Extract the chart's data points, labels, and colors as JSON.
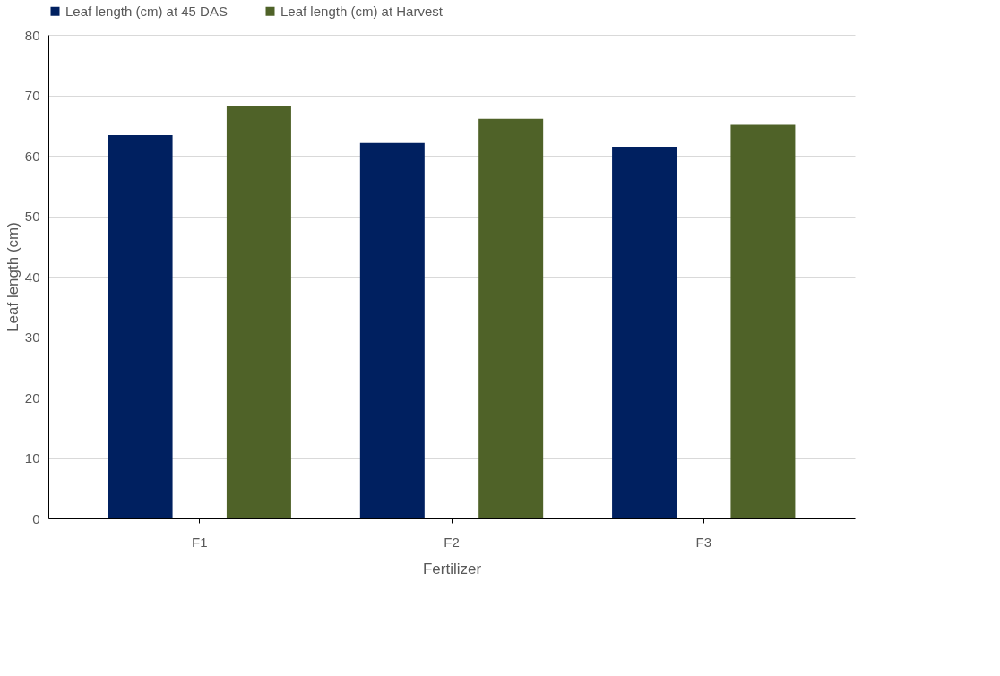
{
  "chart_data": {
    "type": "bar",
    "xlabel": "Fertilizer",
    "ylabel": "Leaf length (cm)",
    "categories": [
      "F1",
      "F2",
      "F3"
    ],
    "series": [
      {
        "name": "Leaf length (cm) at 45 DAS",
        "color": "#002060",
        "values": [
          63.4,
          62.1,
          61.5
        ]
      },
      {
        "name": "Leaf length (cm) at Harvest",
        "color": "#4f6228",
        "values": [
          68.3,
          66.1,
          65.1
        ]
      }
    ],
    "ylim": [
      0,
      80
    ],
    "yticks": [
      0,
      10,
      20,
      30,
      40,
      50,
      60,
      70,
      80
    ],
    "grid": "y",
    "legend": "top"
  }
}
